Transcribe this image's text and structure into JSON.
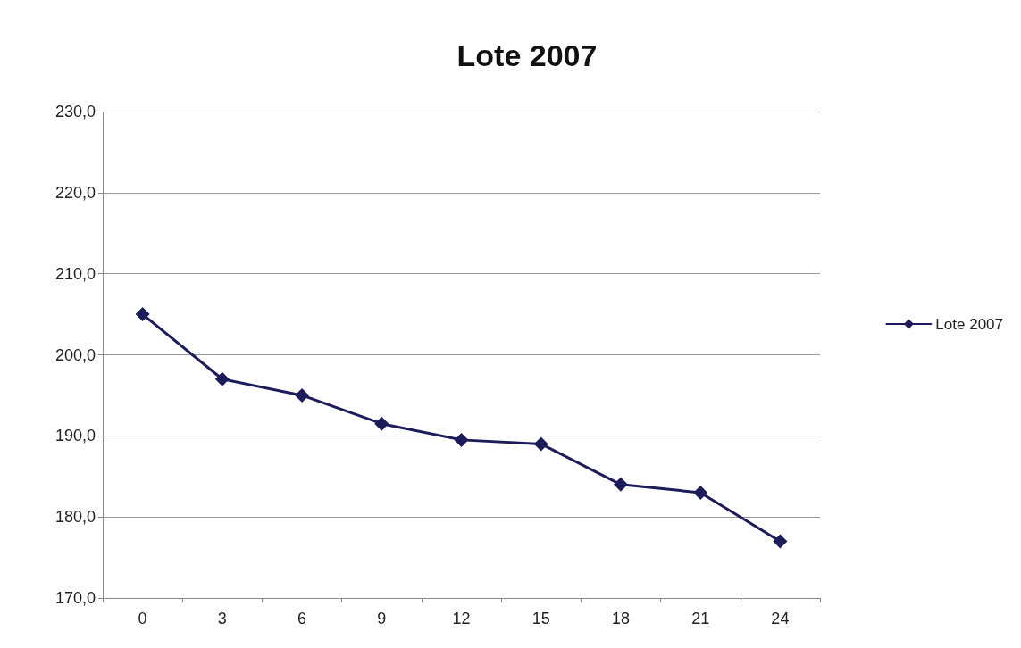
{
  "chart_data": {
    "type": "line",
    "title": "Lote 2007",
    "categories": [
      "0",
      "3",
      "6",
      "9",
      "12",
      "15",
      "18",
      "21",
      "24"
    ],
    "series": [
      {
        "name": "Lote 2007",
        "color": "#1c1c5a",
        "values": [
          205,
          197,
          195,
          191.5,
          189.5,
          189,
          184,
          183,
          177
        ]
      }
    ],
    "ylim": [
      170,
      230
    ],
    "yticks": [
      {
        "value": 170,
        "label": "170,0"
      },
      {
        "value": 180,
        "label": "180,0"
      },
      {
        "value": 190,
        "label": "190,0"
      },
      {
        "value": 200,
        "label": "200,0"
      },
      {
        "value": 210,
        "label": "210,0"
      },
      {
        "value": 220,
        "label": "220,0"
      },
      {
        "value": 230,
        "label": "230,0"
      }
    ],
    "grid": "y",
    "legend": "right",
    "marker": "diamond",
    "line_style": "solid"
  }
}
